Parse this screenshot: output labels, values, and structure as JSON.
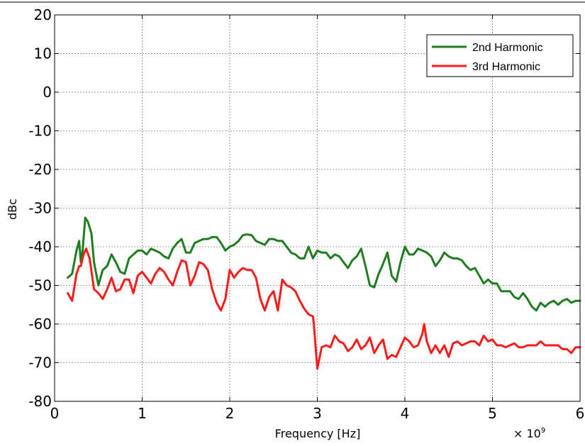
{
  "chart_data": {
    "type": "line",
    "xlabel": "Frequency [Hz]",
    "ylabel": "dBc",
    "x_multiplier_label": "× 10",
    "x_multiplier_exp": "9",
    "xlim": [
      0,
      6
    ],
    "ylim": [
      -80,
      20
    ],
    "xticks": [
      0,
      1,
      2,
      3,
      4,
      5,
      6
    ],
    "xtick_labels": [
      "0",
      "1",
      "2",
      "3",
      "4",
      "5",
      "6"
    ],
    "yticks": [
      20,
      10,
      0,
      -10,
      -20,
      -30,
      -40,
      -50,
      -60,
      -70,
      -80
    ],
    "ytick_labels": [
      "20",
      "10",
      "0",
      "-10",
      "-20",
      "-30",
      "-40",
      "-50",
      "-60",
      "-70",
      "-80"
    ],
    "grid": true,
    "legend_position": "top-right",
    "series": [
      {
        "name": "2nd Harmonic",
        "color": "#1e7d1e",
        "x": [
          0.15,
          0.2,
          0.25,
          0.28,
          0.3,
          0.32,
          0.35,
          0.38,
          0.42,
          0.45,
          0.5,
          0.55,
          0.6,
          0.65,
          0.7,
          0.75,
          0.8,
          0.85,
          0.9,
          0.95,
          1.0,
          1.05,
          1.1,
          1.15,
          1.2,
          1.25,
          1.3,
          1.35,
          1.4,
          1.45,
          1.5,
          1.55,
          1.6,
          1.65,
          1.7,
          1.75,
          1.8,
          1.85,
          1.9,
          1.95,
          2.0,
          2.05,
          2.1,
          2.15,
          2.2,
          2.25,
          2.3,
          2.35,
          2.4,
          2.45,
          2.5,
          2.55,
          2.6,
          2.65,
          2.7,
          2.75,
          2.8,
          2.85,
          2.9,
          2.95,
          3.0,
          3.05,
          3.1,
          3.15,
          3.2,
          3.25,
          3.3,
          3.35,
          3.4,
          3.45,
          3.5,
          3.55,
          3.6,
          3.65,
          3.7,
          3.75,
          3.8,
          3.85,
          3.9,
          3.95,
          4.0,
          4.05,
          4.1,
          4.15,
          4.2,
          4.25,
          4.3,
          4.35,
          4.4,
          4.45,
          4.5,
          4.55,
          4.6,
          4.65,
          4.7,
          4.75,
          4.8,
          4.85,
          4.9,
          4.95,
          5.0,
          5.05,
          5.1,
          5.15,
          5.2,
          5.25,
          5.3,
          5.35,
          5.4,
          5.45,
          5.5,
          5.55,
          5.6,
          5.65,
          5.7,
          5.75,
          5.8,
          5.85,
          5.9,
          5.95,
          6.0
        ],
        "y": [
          -48,
          -47,
          -41,
          -38.5,
          -44,
          -41,
          -32.5,
          -33.5,
          -36.5,
          -44,
          -50,
          -46,
          -45,
          -42,
          -44,
          -46.5,
          -47,
          -43,
          -42,
          -41,
          -41,
          -42,
          -40.5,
          -41,
          -41.5,
          -42.5,
          -43,
          -40.5,
          -39,
          -38,
          -41.5,
          -41.5,
          -39,
          -38.5,
          -38,
          -38,
          -37.5,
          -37.5,
          -39,
          -41,
          -40,
          -39.5,
          -38.5,
          -37,
          -36.8,
          -37,
          -38.5,
          -39,
          -39.5,
          -38,
          -38,
          -38.5,
          -38.5,
          -40,
          -41.5,
          -42,
          -43,
          -43,
          -40,
          -43,
          -41,
          -41.5,
          -41.5,
          -43,
          -42,
          -42.5,
          -44,
          -45.5,
          -43.5,
          -42.5,
          -40.5,
          -45,
          -50,
          -50.5,
          -47,
          -44.5,
          -41.5,
          -47.5,
          -49,
          -44,
          -40,
          -42,
          -42,
          -40.5,
          -41,
          -41.5,
          -42.5,
          -45,
          -43.5,
          -41.5,
          -42.5,
          -43,
          -43,
          -43.5,
          -45,
          -46,
          -45.5,
          -47.5,
          -49.5,
          -48.5,
          -49.5,
          -49.5,
          -51.5,
          -51.5,
          -51.5,
          -53,
          -53.5,
          -52,
          -53.5,
          -55.5,
          -56.5,
          -54.5,
          -55.5,
          -54.5,
          -54,
          -55,
          -54,
          -53.5,
          -54.5,
          -54,
          -54
        ]
      },
      {
        "name": "3rd Harmonic",
        "color": "#ff1a1a",
        "x": [
          0.15,
          0.2,
          0.25,
          0.28,
          0.3,
          0.33,
          0.36,
          0.4,
          0.45,
          0.5,
          0.55,
          0.6,
          0.65,
          0.7,
          0.75,
          0.8,
          0.85,
          0.9,
          0.95,
          1.0,
          1.05,
          1.1,
          1.15,
          1.2,
          1.25,
          1.3,
          1.35,
          1.4,
          1.45,
          1.5,
          1.55,
          1.6,
          1.65,
          1.7,
          1.75,
          1.8,
          1.85,
          1.9,
          1.95,
          2.0,
          2.05,
          2.1,
          2.15,
          2.2,
          2.25,
          2.3,
          2.35,
          2.4,
          2.45,
          2.5,
          2.55,
          2.6,
          2.65,
          2.7,
          2.75,
          2.8,
          2.85,
          2.9,
          2.95,
          2.96,
          3.0,
          3.05,
          3.1,
          3.15,
          3.2,
          3.25,
          3.3,
          3.35,
          3.4,
          3.45,
          3.5,
          3.55,
          3.6,
          3.65,
          3.7,
          3.75,
          3.8,
          3.85,
          3.9,
          3.95,
          4.0,
          4.05,
          4.1,
          4.15,
          4.2,
          4.22,
          4.25,
          4.3,
          4.35,
          4.4,
          4.45,
          4.5,
          4.55,
          4.6,
          4.65,
          4.7,
          4.75,
          4.8,
          4.85,
          4.9,
          4.95,
          5.0,
          5.05,
          5.1,
          5.15,
          5.2,
          5.25,
          5.3,
          5.35,
          5.4,
          5.45,
          5.5,
          5.55,
          5.6,
          5.65,
          5.7,
          5.75,
          5.8,
          5.85,
          5.9,
          5.95,
          6.0
        ],
        "y": [
          -52,
          -54,
          -47,
          -45,
          -45,
          -42,
          -40.5,
          -43,
          -51,
          -52,
          -53.5,
          -51,
          -48,
          -51.5,
          -51,
          -48.5,
          -48.5,
          -52,
          -47.5,
          -46.5,
          -48,
          -49.5,
          -47,
          -45.5,
          -46.5,
          -48.5,
          -50,
          -46.5,
          -43.5,
          -44,
          -50,
          -47.5,
          -44,
          -44.5,
          -46,
          -51,
          -54.5,
          -56.5,
          -53.5,
          -46,
          -48,
          -46.5,
          -45.5,
          -46,
          -46,
          -48,
          -53.5,
          -56.5,
          -53,
          -51.5,
          -56.5,
          -48.5,
          -50,
          -50.5,
          -51.5,
          -54,
          -56,
          -57.5,
          -58,
          -60,
          -71.5,
          -66,
          -65.5,
          -66,
          -63,
          -64.5,
          -65,
          -67,
          -66,
          -64,
          -66.5,
          -65.5,
          -63.5,
          -67.5,
          -65.5,
          -64,
          -69,
          -68,
          -68.5,
          -66,
          -63.5,
          -64.5,
          -66,
          -65.5,
          -62.5,
          -60,
          -64.5,
          -67.5,
          -65.5,
          -67.5,
          -65.5,
          -68.5,
          -65,
          -64.5,
          -65.5,
          -65,
          -64.5,
          -64.5,
          -65.5,
          -63,
          -64.5,
          -64,
          -65.5,
          -65.5,
          -66,
          -65.5,
          -65,
          -66,
          -66,
          -65.5,
          -65.5,
          -65.5,
          -64.5,
          -65.5,
          -65.5,
          -65.5,
          -65.5,
          -66.5,
          -66.5,
          -67.5,
          -66,
          -66
        ]
      }
    ]
  }
}
